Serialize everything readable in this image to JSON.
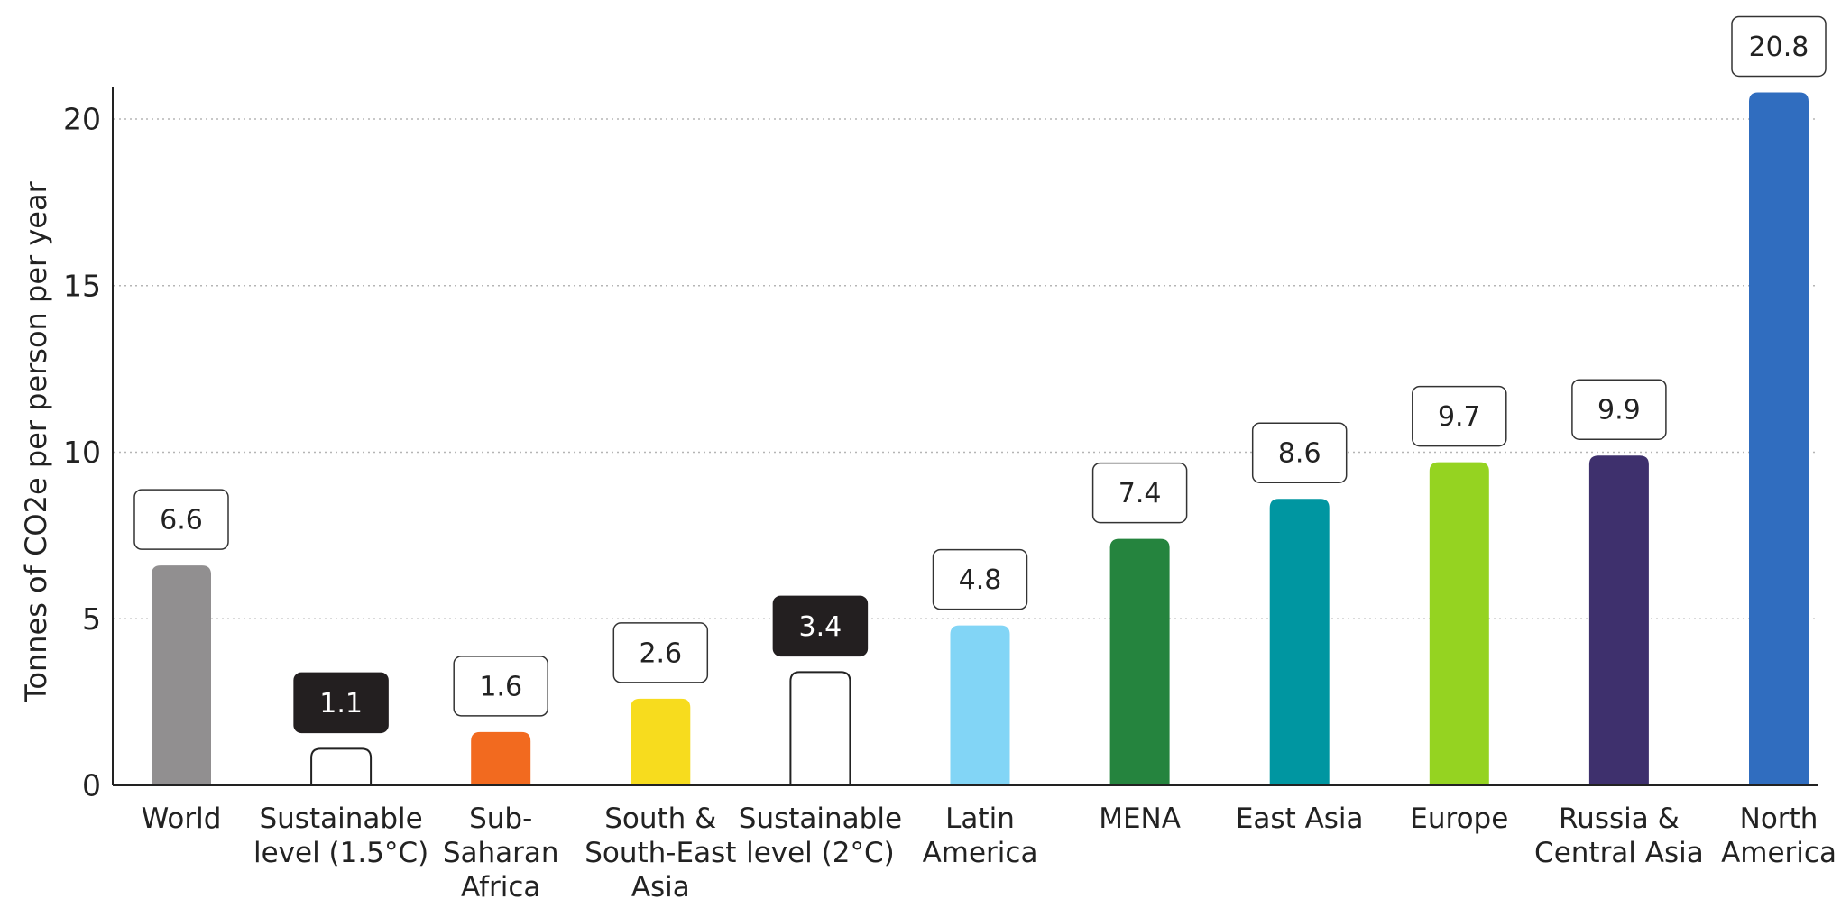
{
  "chart_data": {
    "type": "bar",
    "title": "",
    "xlabel": "",
    "ylabel": "Tonnes of CO2e per person per year",
    "ylim": [
      0,
      21
    ],
    "yticks": [
      0,
      5,
      10,
      15,
      20
    ],
    "grid": "horizontal dotted",
    "categories": [
      [
        "World"
      ],
      [
        "Sustainable",
        "level (1.5°C)"
      ],
      [
        "Sub-",
        "Saharan",
        "Africa"
      ],
      [
        "South &",
        "South-East",
        "Asia"
      ],
      [
        "Sustainable",
        "level (2°C)"
      ],
      [
        "Latin",
        "America"
      ],
      [
        "MENA"
      ],
      [
        "East Asia"
      ],
      [
        "Europe"
      ],
      [
        "Russia &",
        "Central Asia"
      ],
      [
        "North",
        "America"
      ]
    ],
    "values": [
      6.6,
      1.1,
      1.6,
      2.6,
      3.4,
      4.8,
      7.4,
      8.6,
      9.7,
      9.9,
      20.8
    ],
    "value_labels": [
      "6.6",
      "1.1",
      "1.6",
      "2.6",
      "3.4",
      "4.8",
      "7.4",
      "8.6",
      "9.7",
      "9.9",
      "20.8"
    ],
    "colors": [
      "#918f90",
      "#ffffff",
      "#f26a1f",
      "#f7dc1e",
      "#ffffff",
      "#82d5f6",
      "#25843e",
      "#0096a1",
      "#95d321",
      "#3e306d",
      "#306dbf"
    ],
    "outlined": [
      false,
      true,
      false,
      false,
      true,
      false,
      false,
      false,
      false,
      false,
      false
    ],
    "label_style": [
      "box",
      "dark",
      "box",
      "box",
      "dark",
      "box",
      "box",
      "box",
      "box",
      "box",
      "box"
    ]
  }
}
